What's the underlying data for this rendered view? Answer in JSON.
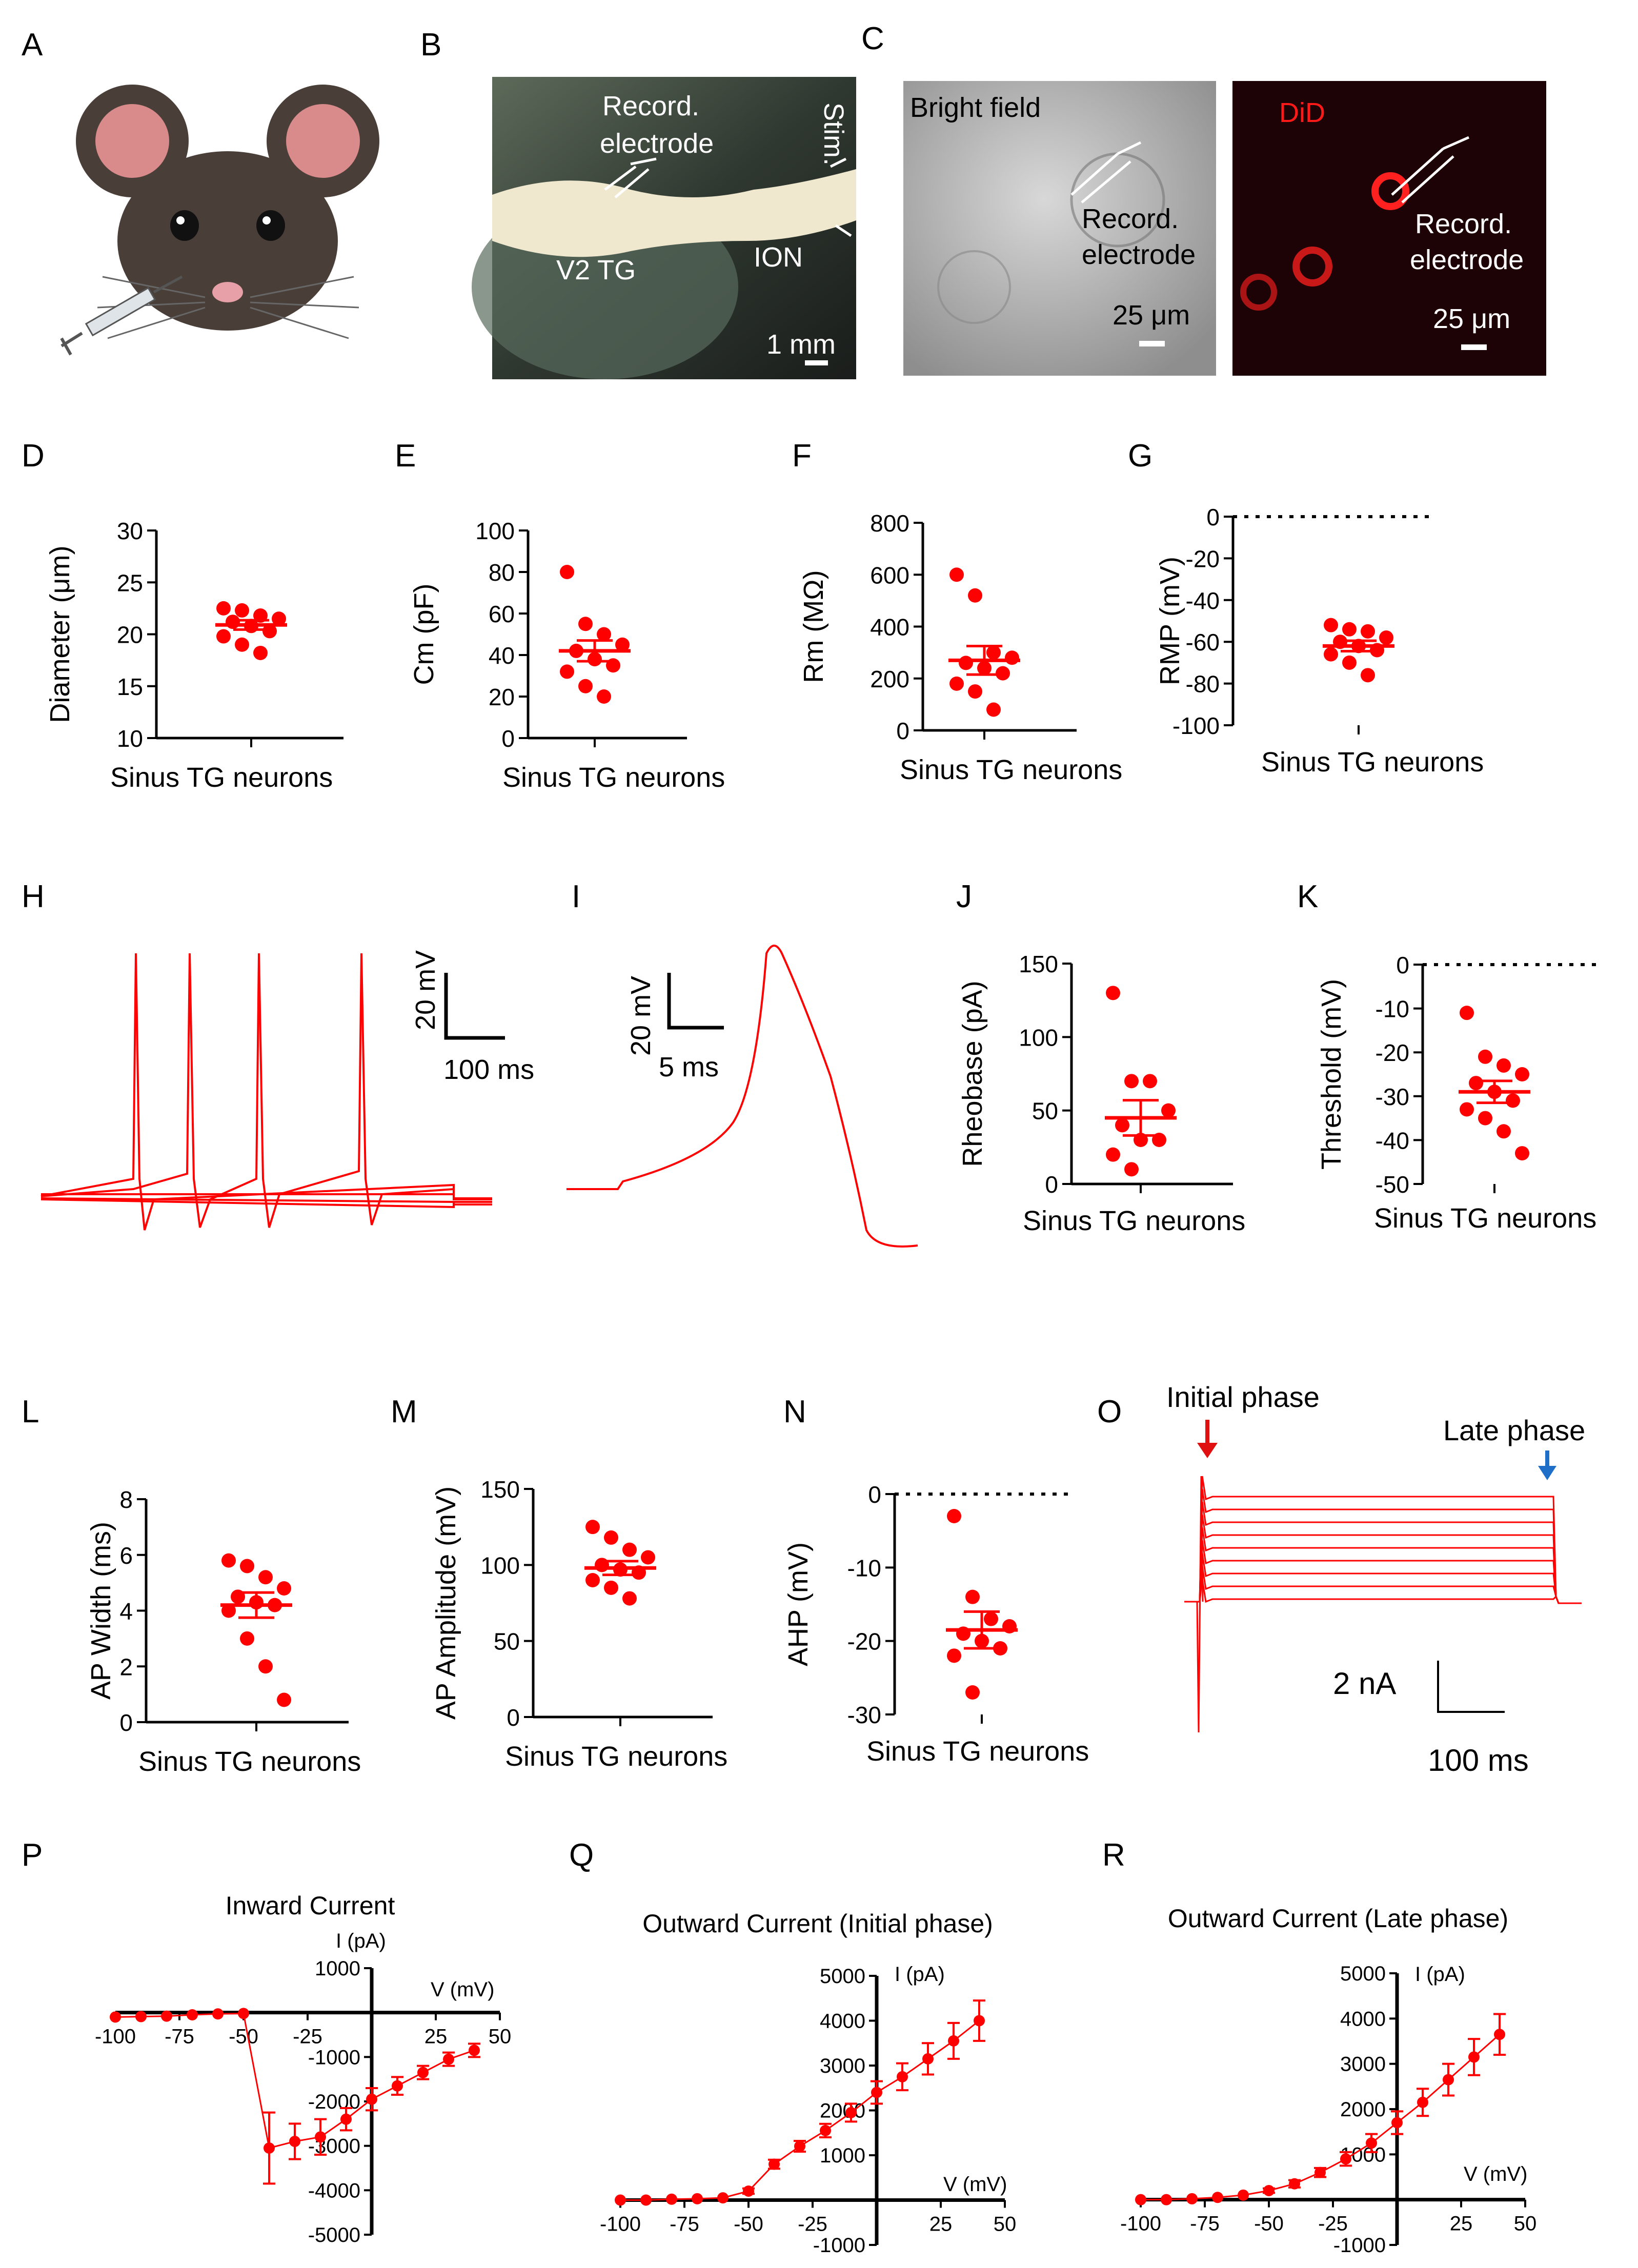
{
  "panels": {
    "A": {
      "letter": "A"
    },
    "B": {
      "letter": "B",
      "record": [
        "Record.",
        "electrode"
      ],
      "stim": "Stim.",
      "v2tg": "V2 TG",
      "ion": "ION",
      "scale": "1 mm"
    },
    "C": {
      "letter": "C",
      "bright": "Bright field",
      "did": "DiD",
      "record": [
        "Record.",
        "electrode"
      ],
      "scale": "25 μm"
    },
    "H": {
      "letter": "H",
      "scale_v": "20 mV",
      "scale_t": "100 ms"
    },
    "I": {
      "letter": "I",
      "scale_v": "20 mV",
      "scale_t": "5 ms"
    },
    "O": {
      "letter": "O",
      "initial": "Initial phase",
      "late": "Late phase",
      "scale_i": "2 nA",
      "scale_t": "100 ms"
    }
  },
  "colors": {
    "data": "#ff0000",
    "axis": "#000000",
    "blue_arrow": "#1f6fc8"
  },
  "chart_data": [
    {
      "id": "D",
      "type": "scatter",
      "ylabel": "Diameter (μm)",
      "xlabel": "Sinus TG neurons",
      "ylim": [
        10,
        30
      ],
      "yticks": [
        10,
        15,
        20,
        25,
        30
      ],
      "values": [
        22.5,
        22.3,
        21.8,
        21.5,
        21.2,
        20.8,
        20.3,
        19.8,
        19.0,
        18.2
      ],
      "mean": 20.9,
      "sem": 0.45
    },
    {
      "id": "E",
      "type": "scatter",
      "ylabel": "Cm (pF)",
      "xlabel": "Sinus TG neurons",
      "ylim": [
        0,
        100
      ],
      "yticks": [
        0,
        20,
        40,
        60,
        80,
        100
      ],
      "values": [
        80,
        55,
        50,
        45,
        42,
        38,
        35,
        32,
        25,
        20
      ],
      "mean": 42,
      "sem": 5
    },
    {
      "id": "F",
      "type": "scatter",
      "ylabel": "Rm (MΩ)",
      "xlabel": "Sinus TG neurons",
      "ylim": [
        0,
        800
      ],
      "yticks": [
        0,
        200,
        400,
        600,
        800
      ],
      "values": [
        600,
        520,
        300,
        280,
        260,
        240,
        220,
        180,
        150,
        80
      ],
      "mean": 270,
      "sem": 55
    },
    {
      "id": "G",
      "type": "scatter",
      "ylabel": "RMP (mV)",
      "xlabel": "Sinus TG neurons",
      "ylim": [
        -100,
        0
      ],
      "yticks": [
        0,
        -20,
        -40,
        -60,
        -80,
        -100
      ],
      "dotted_zero": true,
      "values": [
        -52,
        -54,
        -55,
        -58,
        -60,
        -62,
        -64,
        -66,
        -70,
        -76
      ],
      "mean": -62,
      "sem": 2.5
    },
    {
      "id": "J",
      "type": "scatter",
      "ylabel": "Rheobase (pA)",
      "xlabel": "Sinus TG neurons",
      "ylim": [
        0,
        150
      ],
      "yticks": [
        0,
        50,
        100,
        150
      ],
      "values": [
        130,
        70,
        70,
        50,
        40,
        30,
        30,
        20,
        10
      ],
      "mean": 45,
      "sem": 12
    },
    {
      "id": "K",
      "type": "scatter",
      "ylabel": "Threshold (mV)",
      "xlabel": "Sinus TG neurons",
      "ylim": [
        -50,
        0
      ],
      "yticks": [
        0,
        -10,
        -20,
        -30,
        -40,
        -50
      ],
      "dotted_zero": true,
      "values": [
        -11,
        -21,
        -23,
        -25,
        -27,
        -29,
        -31,
        -33,
        -35,
        -38,
        -43
      ],
      "mean": -29,
      "sem": 2.5
    },
    {
      "id": "L",
      "type": "scatter",
      "ylabel": "AP Width (ms)",
      "xlabel": "Sinus TG neurons",
      "ylim": [
        0,
        8
      ],
      "yticks": [
        0,
        2,
        4,
        6,
        8
      ],
      "values": [
        5.8,
        5.6,
        5.2,
        4.8,
        4.5,
        4.3,
        4.2,
        4.0,
        3.0,
        2.0,
        0.8
      ],
      "mean": 4.2,
      "sem": 0.45
    },
    {
      "id": "M",
      "type": "scatter",
      "ylabel": "AP Amplitude (mV)",
      "xlabel": "Sinus TG neurons",
      "ylim": [
        0,
        150
      ],
      "yticks": [
        0,
        50,
        100,
        150
      ],
      "values": [
        125,
        118,
        110,
        105,
        100,
        97,
        95,
        90,
        85,
        78
      ],
      "mean": 98,
      "sem": 4.5
    },
    {
      "id": "N",
      "type": "scatter",
      "ylabel": "AHP (mV)",
      "xlabel": "Sinus TG neurons",
      "ylim": [
        -30,
        0
      ],
      "yticks": [
        0,
        -10,
        -20,
        -30
      ],
      "dotted_zero": true,
      "values": [
        -3,
        -14,
        -17,
        -18,
        -19,
        -20,
        -21,
        -22,
        -27
      ],
      "mean": -18.5,
      "sem": 2.5
    },
    {
      "id": "P",
      "type": "line",
      "title": "Inward Current",
      "xlabel": "V (mV)",
      "ylabel": "I (pA)",
      "xlim": [
        -100,
        50
      ],
      "ylim": [
        -5000,
        1000
      ],
      "xticks": [
        -100,
        -75,
        -50,
        -25,
        25,
        50
      ],
      "yticks": [
        1000,
        -1000,
        -2000,
        -3000,
        -4000,
        -5000
      ],
      "x": [
        -100,
        -90,
        -80,
        -70,
        -60,
        -50,
        -40,
        -30,
        -20,
        -10,
        0,
        10,
        20,
        30,
        40
      ],
      "y": [
        -100,
        -90,
        -80,
        -50,
        -30,
        -20,
        -3050,
        -2900,
        -2800,
        -2400,
        -1950,
        -1650,
        -1350,
        -1050,
        -850
      ],
      "err": [
        20,
        20,
        20,
        20,
        20,
        20,
        800,
        400,
        400,
        250,
        250,
        200,
        150,
        150,
        150
      ]
    },
    {
      "id": "Q",
      "type": "line",
      "title": "Outward Current (Initial phase)",
      "xlabel": "V (mV)",
      "ylabel": "I (pA)",
      "xlim": [
        -100,
        50
      ],
      "ylim": [
        -1000,
        5000
      ],
      "xticks": [
        -100,
        -75,
        -50,
        -25,
        25,
        50
      ],
      "yticks": [
        5000,
        4000,
        3000,
        2000,
        1000,
        -1000
      ],
      "x": [
        -100,
        -90,
        -80,
        -70,
        -60,
        -50,
        -40,
        -30,
        -20,
        -10,
        0,
        10,
        20,
        30,
        40
      ],
      "y": [
        0,
        0,
        20,
        30,
        50,
        200,
        800,
        1200,
        1550,
        1950,
        2400,
        2750,
        3150,
        3550,
        4000
      ],
      "err": [
        20,
        20,
        20,
        20,
        30,
        60,
        100,
        120,
        150,
        200,
        250,
        300,
        350,
        400,
        450
      ]
    },
    {
      "id": "R",
      "type": "line",
      "title": "Outward Current (Late phase)",
      "xlabel": "V (mV)",
      "ylabel": "I (pA)",
      "xlim": [
        -100,
        50
      ],
      "ylim": [
        -1000,
        5000
      ],
      "xticks": [
        -100,
        -75,
        -50,
        -25,
        25,
        50
      ],
      "yticks": [
        5000,
        4000,
        3000,
        2000,
        1000,
        -1000
      ],
      "x": [
        -100,
        -90,
        -80,
        -70,
        -60,
        -50,
        -40,
        -30,
        -20,
        -10,
        0,
        10,
        20,
        30,
        40
      ],
      "y": [
        0,
        0,
        20,
        50,
        100,
        200,
        350,
        600,
        900,
        1250,
        1700,
        2150,
        2650,
        3150,
        3650
      ],
      "err": [
        20,
        20,
        20,
        20,
        30,
        50,
        80,
        100,
        150,
        200,
        250,
        300,
        350,
        400,
        450
      ]
    }
  ]
}
